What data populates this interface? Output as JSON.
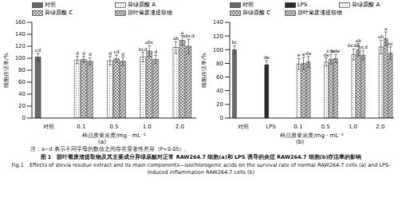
{
  "chart_data": [
    {
      "type": "bar",
      "subtitle": "(a)",
      "x_label": "样品质量浓度/mg · mL⁻¹",
      "y_label": "细胞存活率/%",
      "categories": [
        "对照",
        "0.1",
        "0.5",
        "1.0",
        "2.0"
      ],
      "ylim": [
        0,
        160
      ],
      "yticks": [
        0,
        20,
        40,
        60,
        80,
        100,
        120,
        140,
        160
      ],
      "grid": false,
      "legend": "top",
      "series": [
        {
          "name": "对照",
          "color": "#6b6b6b",
          "values": [
            102,
            null,
            null,
            null,
            null
          ],
          "errors": [
            6,
            null,
            null,
            null,
            null
          ],
          "significance": [
            "cd",
            null,
            null,
            null,
            null
          ]
        },
        {
          "name": "异绿原酸 A",
          "color": "#ffffff",
          "values": [
            null,
            97,
            96,
            102,
            118
          ],
          "errors": [
            null,
            6,
            7,
            8,
            10
          ],
          "significance": [
            null,
            "d",
            "d",
            "bcd",
            "ab"
          ]
        },
        {
          "name": "异绿原酸 C",
          "color": "#d9d9d9",
          "values": [
            null,
            98,
            99,
            112,
            130
          ],
          "errors": [
            null,
            5,
            6,
            9,
            8
          ],
          "significance": [
            null,
            "d",
            "cd",
            "abc",
            "a"
          ]
        },
        {
          "name": "甜叶菊废渣提取物",
          "color": "#c4c4c4",
          "values": [
            null,
            95,
            95,
            98,
            120
          ],
          "errors": [
            null,
            6,
            7,
            7,
            12
          ],
          "significance": [
            null,
            "d",
            "d",
            "d",
            "abcd"
          ]
        }
      ]
    },
    {
      "type": "bar",
      "subtitle": "(b)",
      "x_label": "样品质量浓度/mg · mL⁻¹",
      "y_label": "细胞存活率/%",
      "categories": [
        "对照",
        "LPS",
        "0.1",
        "0.5",
        "1.0",
        "2.0"
      ],
      "ylim": [
        0,
        140
      ],
      "yticks": [
        0,
        20,
        40,
        60,
        80,
        100,
        120,
        140
      ],
      "grid": false,
      "legend": "top",
      "series": [
        {
          "name": "对照",
          "color": "#6b6b6b",
          "values": [
            100,
            null,
            null,
            null,
            null,
            null
          ],
          "errors": [
            6,
            null,
            null,
            null,
            null,
            null
          ],
          "significance": [
            "bc",
            null,
            null,
            null,
            null,
            null
          ]
        },
        {
          "name": "LPS",
          "color": "#2e2e2e",
          "values": [
            null,
            78,
            null,
            null,
            null,
            null
          ],
          "errors": [
            null,
            6,
            null,
            null,
            null,
            null
          ],
          "significance": [
            null,
            "de",
            null,
            null,
            null,
            null
          ]
        },
        {
          "name": "异绿原酸 A",
          "color": "#ffffff",
          "values": [
            null,
            null,
            79,
            82,
            93,
            104
          ],
          "errors": [
            null,
            null,
            8,
            6,
            8,
            10
          ],
          "significance": [
            null,
            null,
            "e",
            "de",
            "bcde",
            "ab"
          ]
        },
        {
          "name": "异绿原酸 C",
          "color": "#d9d9d9",
          "values": [
            null,
            null,
            80,
            86,
            100,
            116
          ],
          "errors": [
            null,
            null,
            9,
            7,
            9,
            10
          ],
          "significance": [
            null,
            null,
            "e",
            "cde",
            "ab",
            "a"
          ]
        },
        {
          "name": "甜叶菊废渣提取物",
          "color": "#c4c4c4",
          "values": [
            null,
            null,
            82,
            87,
            92,
            95
          ],
          "errors": [
            null,
            null,
            8,
            6,
            7,
            9
          ],
          "significance": [
            null,
            null,
            "de",
            "cde",
            "bcd",
            "bc"
          ]
        }
      ]
    }
  ],
  "note": "注：a~d 表示不同字母的数值之间存在显著性差异（P<0.05）。",
  "caption": "图 1　甜叶菊废渣提取物及其主要成分异绿原酸对正常 RAW264.7 细胞(a)和 LPS 诱导的炎症 RAW264.7 细胞(b)存活率的影响",
  "caption_en": "Fig.1　Effects of stevia residue extract and its main components—isochlorogenic acids on the survival rate of normal RAW264.7 cells (a) and LPS-induced inflammation RAW264.7 cells (b)"
}
